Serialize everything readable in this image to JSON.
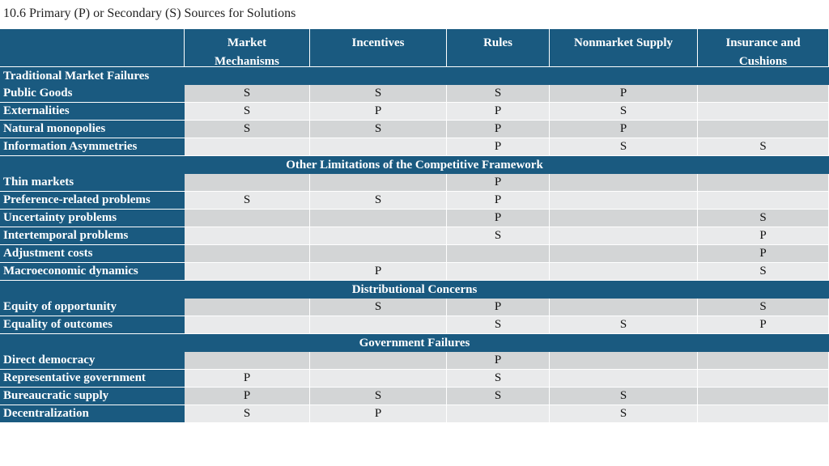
{
  "title": "10.6 Primary (P) or Secondary (S) Sources for Solutions",
  "columns": [
    {
      "lines": [
        "Market",
        "Mechanisms"
      ]
    },
    {
      "lines": [
        "Incentives"
      ]
    },
    {
      "lines": [
        "Rules"
      ]
    },
    {
      "lines": [
        "Nonmarket Supply"
      ]
    },
    {
      "lines": [
        "Insurance and",
        "Cushions"
      ]
    }
  ],
  "sections": [
    {
      "title": "Traditional Market Failures",
      "align": "left",
      "rows": [
        {
          "label": "Public Goods",
          "values": [
            "S",
            "S",
            "S",
            "P",
            ""
          ]
        },
        {
          "label": "Externalities",
          "values": [
            "S",
            "P",
            "P",
            "S",
            ""
          ]
        },
        {
          "label": "Natural monopolies",
          "values": [
            "S",
            "S",
            "P",
            "P",
            ""
          ]
        },
        {
          "label": "Information Asymmetries",
          "values": [
            "",
            "",
            "P",
            "S",
            "S"
          ]
        }
      ]
    },
    {
      "title": "Other Limitations of the Competitive Framework",
      "align": "center",
      "rows": [
        {
          "label": "Thin markets",
          "values": [
            "",
            "",
            "P",
            "",
            ""
          ]
        },
        {
          "label": "Preference-related problems",
          "values": [
            "S",
            "S",
            "P",
            "",
            ""
          ]
        },
        {
          "label": "Uncertainty problems",
          "values": [
            "",
            "",
            "P",
            "",
            "S"
          ]
        },
        {
          "label": "Intertemporal problems",
          "values": [
            "",
            "",
            "S",
            "",
            "P"
          ]
        },
        {
          "label": "Adjustment costs",
          "values": [
            "",
            "",
            "",
            "",
            "P"
          ]
        },
        {
          "label": "Macroeconomic dynamics",
          "values": [
            "",
            "P",
            "",
            "",
            "S"
          ]
        }
      ]
    },
    {
      "title": "Distributional Concerns",
      "align": "center",
      "rows": [
        {
          "label": "Equity of opportunity",
          "values": [
            "",
            "S",
            "P",
            "",
            "S"
          ]
        },
        {
          "label": "Equality of outcomes",
          "values": [
            "",
            "",
            "S",
            "S",
            "P"
          ]
        }
      ]
    },
    {
      "title": "Government Failures",
      "align": "center",
      "rows": [
        {
          "label": "Direct democracy",
          "values": [
            "",
            "",
            "P",
            "",
            ""
          ]
        },
        {
          "label": "Representative government",
          "values": [
            "P",
            "",
            "S",
            "",
            ""
          ]
        },
        {
          "label": "Bureaucratic supply",
          "values": [
            "P",
            "S",
            "S",
            "S",
            ""
          ]
        },
        {
          "label": "Decentralization",
          "values": [
            "S",
            "P",
            "",
            "S",
            ""
          ]
        }
      ]
    }
  ]
}
